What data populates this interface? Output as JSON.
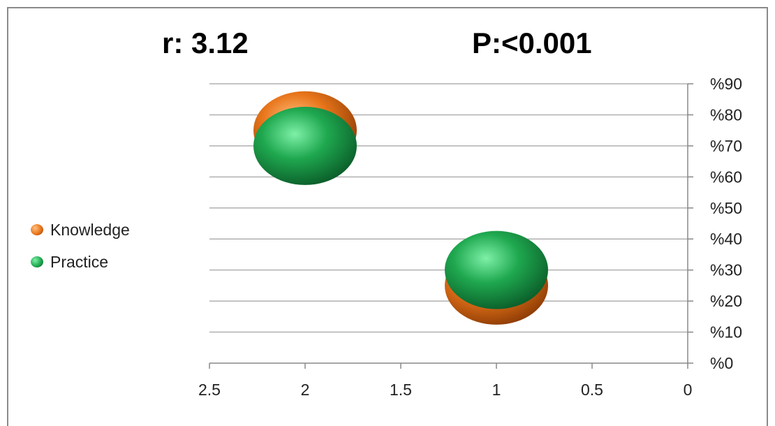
{
  "header": {
    "r_label": "r: 3.12",
    "p_label": "P:<0.001"
  },
  "legend": {
    "items": [
      {
        "label": "Knowledge",
        "color": "#e8751a"
      },
      {
        "label": "Practice",
        "color": "#1fa84f"
      }
    ]
  },
  "chart_data": {
    "type": "scatter",
    "title": "",
    "xlabel": "",
    "ylabel": "",
    "xlim": [
      0,
      2.5
    ],
    "x_reversed": true,
    "x_ticks": [
      "2.5",
      "2",
      "1.5",
      "1",
      "0.5",
      "0"
    ],
    "ylim": [
      0,
      90
    ],
    "y_side": "right",
    "y_ticks": [
      "%0",
      "%10",
      "%20",
      "%30",
      "%40",
      "%50",
      "%60",
      "%70",
      "%80",
      "%90"
    ],
    "grid": true,
    "legend_position": "left",
    "series": [
      {
        "name": "Knowledge",
        "color": "#e8751a",
        "points": [
          {
            "x": 2,
            "y": 75
          },
          {
            "x": 1,
            "y": 25
          }
        ]
      },
      {
        "name": "Practice",
        "color": "#1fa84f",
        "points": [
          {
            "x": 2,
            "y": 70
          },
          {
            "x": 1,
            "y": 30
          }
        ]
      }
    ]
  }
}
